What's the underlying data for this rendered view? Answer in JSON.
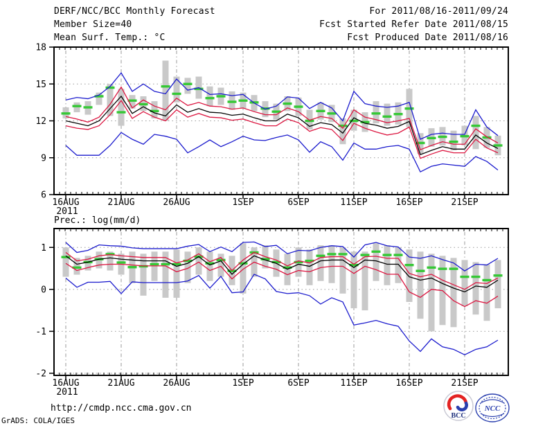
{
  "header": {
    "title": "DERF/NCC/BCC Monthly Forecast",
    "member_size": "Member Size=40",
    "for_range": "For 2011/08/16-2011/09/24",
    "refer_date": "Fcst Started Refer Date 2011/08/15",
    "produced_date": "Fcst Produced Date 2011/08/16"
  },
  "footer": {
    "url": "http://cmdp.ncc.cma.gov.cn",
    "credit": "GrADS: COLA/IGES"
  },
  "logos": {
    "bcc_label": "BCC",
    "ncc_label": "NCC"
  },
  "colors": {
    "blue": "#1a1acd",
    "red": "#dc1640",
    "black": "#000000",
    "green": "#35c835",
    "bar": "#c9c9c9",
    "grid": "#9a9a9a"
  },
  "charts_common": {
    "n_points": 40,
    "date_range": "2011/08/16-2011/09/24",
    "x_ticks": [
      {
        "day": 0,
        "label": "16AUG",
        "sublabel": "2011"
      },
      {
        "day": 5,
        "label": "21AUG"
      },
      {
        "day": 10,
        "label": "26AUG"
      },
      {
        "day": 16,
        "label": "1SEP"
      },
      {
        "day": 21,
        "label": "6SEP"
      },
      {
        "day": 26,
        "label": "11SEP"
      },
      {
        "day": 31,
        "label": "16SEP"
      },
      {
        "day": 36,
        "label": "21SEP"
      }
    ]
  },
  "chart_data": [
    {
      "type": "line",
      "title": "Mean Surf. Temp.: °C",
      "ylim": [
        6,
        18
      ],
      "yticks": [
        18,
        15,
        12,
        9,
        6
      ],
      "grid": true,
      "legend_position": "none",
      "series": [
        {
          "name": "ensemble-max",
          "color": "blue",
          "values": [
            13.7,
            13.9,
            13.8,
            14.1,
            14.8,
            15.9,
            14.4,
            15.0,
            14.4,
            14.2,
            15.4,
            14.5,
            14.7,
            14.15,
            14.2,
            14.05,
            14.15,
            13.45,
            12.95,
            13.2,
            13.95,
            13.85,
            13.0,
            13.5,
            13.05,
            12.0,
            14.4,
            13.4,
            13.2,
            13.1,
            13.2,
            13.5,
            10.5,
            10.9,
            11.0,
            10.9,
            10.9,
            12.9,
            11.5,
            10.8
          ]
        },
        {
          "name": "upper-spread",
          "color": "red",
          "values": [
            12.35,
            12.15,
            11.9,
            12.3,
            13.35,
            14.75,
            13.05,
            13.7,
            13.2,
            12.9,
            13.85,
            13.25,
            13.5,
            13.2,
            13.15,
            12.95,
            13.05,
            12.75,
            12.5,
            12.5,
            13.05,
            12.75,
            12.05,
            12.35,
            12.2,
            11.4,
            12.9,
            12.3,
            12.1,
            11.85,
            12.0,
            12.2,
            9.65,
            10.0,
            10.3,
            10.1,
            10.1,
            11.35,
            10.7,
            10.2
          ]
        },
        {
          "name": "ensemble-mean",
          "color": "black",
          "values": [
            12.0,
            11.8,
            11.6,
            12.0,
            13.0,
            14.0,
            12.6,
            13.15,
            12.65,
            12.4,
            13.3,
            12.7,
            13.0,
            12.7,
            12.65,
            12.45,
            12.55,
            12.25,
            12.0,
            12.0,
            12.55,
            12.25,
            11.55,
            11.85,
            11.7,
            11.0,
            12.25,
            11.8,
            11.65,
            11.4,
            11.55,
            11.95,
            9.25,
            9.6,
            9.9,
            9.7,
            9.7,
            10.85,
            10.2,
            9.75
          ]
        },
        {
          "name": "lower-spread",
          "color": "red",
          "values": [
            11.6,
            11.4,
            11.3,
            11.6,
            12.5,
            13.65,
            12.2,
            12.75,
            12.3,
            12.0,
            12.9,
            12.3,
            12.6,
            12.3,
            12.25,
            12.05,
            12.15,
            11.85,
            11.6,
            11.6,
            12.15,
            11.85,
            11.15,
            11.45,
            11.3,
            10.4,
            11.8,
            11.4,
            11.1,
            10.85,
            11.0,
            11.5,
            8.95,
            9.3,
            9.6,
            9.4,
            9.4,
            10.5,
            9.8,
            9.4
          ]
        },
        {
          "name": "ensemble-min",
          "color": "blue",
          "values": [
            10.0,
            9.2,
            9.2,
            9.2,
            10.0,
            11.05,
            10.5,
            10.1,
            10.9,
            10.75,
            10.5,
            9.4,
            9.9,
            10.45,
            9.9,
            10.3,
            10.75,
            10.45,
            10.4,
            10.65,
            10.85,
            10.45,
            9.45,
            10.3,
            9.9,
            8.8,
            10.2,
            9.7,
            9.7,
            9.9,
            10.0,
            9.7,
            7.85,
            8.3,
            8.5,
            8.4,
            8.3,
            9.1,
            8.7,
            8.0
          ]
        }
      ],
      "observation": {
        "name": "observation-dashes",
        "color": "green",
        "values": [
          12.6,
          13.2,
          13.1,
          14.0,
          14.7,
          12.7,
          13.65,
          13.35,
          12.8,
          14.8,
          14.2,
          15.0,
          14.6,
          13.85,
          14.0,
          13.55,
          13.65,
          13.5,
          13.0,
          12.75,
          13.4,
          13.15,
          12.0,
          12.8,
          12.6,
          11.6,
          12.0,
          11.9,
          12.6,
          12.35,
          12.55,
          13.0,
          10.2,
          10.6,
          10.7,
          10.3,
          10.75,
          11.6,
          10.65,
          10.0
        ]
      },
      "bars": [
        [
          12.2,
          13.1
        ],
        [
          12.7,
          13.5
        ],
        [
          12.5,
          13.6
        ],
        [
          13.3,
          14.3
        ],
        [
          12.4,
          15.0
        ],
        [
          11.6,
          14.6
        ],
        [
          13.0,
          14.1
        ],
        [
          12.8,
          14.0
        ],
        [
          12.2,
          13.6
        ],
        [
          12.0,
          16.9
        ],
        [
          13.5,
          15.6
        ],
        [
          14.2,
          15.5
        ],
        [
          13.8,
          15.6
        ],
        [
          13.2,
          14.8
        ],
        [
          13.3,
          14.7
        ],
        [
          12.9,
          14.4
        ],
        [
          13.0,
          14.3
        ],
        [
          12.8,
          14.1
        ],
        [
          12.3,
          13.6
        ],
        [
          12.1,
          13.4
        ],
        [
          12.8,
          14.0
        ],
        [
          12.4,
          13.9
        ],
        [
          11.3,
          12.9
        ],
        [
          12.1,
          13.5
        ],
        [
          11.9,
          13.3
        ],
        [
          10.1,
          12.2
        ],
        [
          11.2,
          12.9
        ],
        [
          11.1,
          12.7
        ],
        [
          11.8,
          13.6
        ],
        [
          11.6,
          13.4
        ],
        [
          11.7,
          13.5
        ],
        [
          11.5,
          14.6
        ],
        [
          9.3,
          11.0
        ],
        [
          9.9,
          11.4
        ],
        [
          10.0,
          11.5
        ],
        [
          9.6,
          11.2
        ],
        [
          10.0,
          11.6
        ],
        [
          9.7,
          12.4
        ],
        [
          9.8,
          11.5
        ],
        [
          9.2,
          10.8
        ]
      ]
    },
    {
      "type": "line",
      "title": "Prec.: log(mm/d)",
      "ylim": [
        -2.05,
        1.45
      ],
      "yticks": [
        1,
        0,
        -1,
        -2
      ],
      "grid": true,
      "legend_position": "none",
      "series": [
        {
          "name": "ensemble-max",
          "color": "blue",
          "values": [
            1.12,
            0.88,
            0.93,
            1.06,
            1.04,
            1.03,
            0.99,
            0.97,
            0.97,
            0.97,
            0.97,
            1.03,
            1.07,
            0.9,
            1.01,
            0.9,
            1.12,
            1.13,
            1.02,
            1.05,
            0.85,
            0.93,
            0.92,
            1.0,
            1.04,
            1.02,
            0.77,
            1.06,
            1.12,
            1.04,
            1.01,
            0.77,
            0.74,
            0.8,
            0.71,
            0.63,
            0.44,
            0.6,
            0.58,
            0.74
          ]
        },
        {
          "name": "upper-spread",
          "color": "red",
          "values": [
            0.88,
            0.68,
            0.72,
            0.8,
            0.83,
            0.8,
            0.78,
            0.76,
            0.76,
            0.76,
            0.63,
            0.7,
            0.85,
            0.66,
            0.76,
            0.45,
            0.7,
            0.88,
            0.78,
            0.7,
            0.56,
            0.68,
            0.63,
            0.76,
            0.78,
            0.78,
            0.6,
            0.78,
            0.79,
            0.74,
            0.74,
            0.38,
            0.3,
            0.36,
            0.22,
            0.11,
            0.0,
            0.16,
            0.14,
            0.27
          ]
        },
        {
          "name": "ensemble-mean",
          "color": "black",
          "values": [
            0.8,
            0.6,
            0.65,
            0.72,
            0.75,
            0.72,
            0.7,
            0.68,
            0.68,
            0.68,
            0.55,
            0.62,
            0.78,
            0.58,
            0.68,
            0.36,
            0.6,
            0.8,
            0.7,
            0.62,
            0.48,
            0.6,
            0.55,
            0.68,
            0.7,
            0.7,
            0.52,
            0.7,
            0.68,
            0.6,
            0.6,
            0.3,
            0.22,
            0.27,
            0.14,
            0.03,
            -0.06,
            0.08,
            0.05,
            0.22
          ]
        },
        {
          "name": "lower-spread",
          "color": "red",
          "values": [
            0.62,
            0.45,
            0.52,
            0.58,
            0.6,
            0.6,
            0.58,
            0.56,
            0.56,
            0.56,
            0.42,
            0.5,
            0.65,
            0.45,
            0.55,
            0.25,
            0.48,
            0.65,
            0.55,
            0.48,
            0.35,
            0.45,
            0.42,
            0.52,
            0.55,
            0.55,
            0.38,
            0.55,
            0.47,
            0.36,
            0.36,
            -0.06,
            -0.19,
            0.0,
            -0.03,
            -0.27,
            -0.41,
            -0.27,
            -0.33,
            -0.16
          ]
        },
        {
          "name": "ensemble-min",
          "color": "blue",
          "values": [
            0.27,
            0.05,
            0.17,
            0.17,
            0.19,
            -0.1,
            0.18,
            0.16,
            0.16,
            0.16,
            0.16,
            0.2,
            0.33,
            0.03,
            0.31,
            -0.08,
            -0.06,
            0.36,
            0.25,
            -0.05,
            -0.1,
            -0.08,
            -0.15,
            -0.35,
            -0.2,
            -0.3,
            -0.85,
            -0.8,
            -0.74,
            -0.82,
            -0.88,
            -1.23,
            -1.48,
            -1.18,
            -1.37,
            -1.43,
            -1.56,
            -1.43,
            -1.37,
            -1.21
          ]
        }
      ],
      "observation": {
        "name": "observation-dashes",
        "color": "green",
        "values": [
          0.77,
          0.52,
          0.65,
          0.72,
          0.84,
          0.64,
          0.53,
          0.55,
          0.6,
          0.6,
          0.6,
          0.68,
          0.78,
          0.62,
          0.7,
          0.44,
          0.62,
          0.88,
          0.72,
          0.65,
          0.52,
          0.65,
          0.68,
          0.8,
          0.84,
          0.84,
          0.58,
          0.82,
          0.9,
          0.82,
          0.82,
          0.58,
          0.44,
          0.52,
          0.49,
          0.49,
          0.3,
          0.3,
          0.22,
          0.33
        ]
      },
      "bars": [
        [
          0.3,
          1.0
        ],
        [
          0.35,
          0.75
        ],
        [
          0.45,
          0.8
        ],
        [
          0.5,
          0.9
        ],
        [
          0.45,
          0.9
        ],
        [
          0.35,
          0.85
        ],
        [
          0.15,
          0.9
        ],
        [
          -0.15,
          0.85
        ],
        [
          0.2,
          0.9
        ],
        [
          -0.2,
          0.9
        ],
        [
          -0.2,
          0.95
        ],
        [
          0.15,
          0.9
        ],
        [
          0.35,
          1.0
        ],
        [
          0.2,
          0.9
        ],
        [
          0.3,
          0.85
        ],
        [
          0.1,
          0.8
        ],
        [
          -0.1,
          1.1
        ],
        [
          0.3,
          1.0
        ],
        [
          0.5,
          1.05
        ],
        [
          0.3,
          0.95
        ],
        [
          0.1,
          0.85
        ],
        [
          0.3,
          1.0
        ],
        [
          0.1,
          0.95
        ],
        [
          0.2,
          1.05
        ],
        [
          0.15,
          1.05
        ],
        [
          -0.1,
          1.0
        ],
        [
          -0.45,
          0.9
        ],
        [
          -0.5,
          0.9
        ],
        [
          0.2,
          1.1
        ],
        [
          0.1,
          1.05
        ],
        [
          0.15,
          1.0
        ],
        [
          -0.3,
          0.95
        ],
        [
          -0.7,
          0.9
        ],
        [
          -1.0,
          0.85
        ],
        [
          -0.85,
          0.8
        ],
        [
          -0.9,
          0.75
        ],
        [
          -0.4,
          0.7
        ],
        [
          -0.6,
          0.65
        ],
        [
          -0.75,
          0.6
        ],
        [
          -0.45,
          0.7
        ]
      ]
    }
  ]
}
